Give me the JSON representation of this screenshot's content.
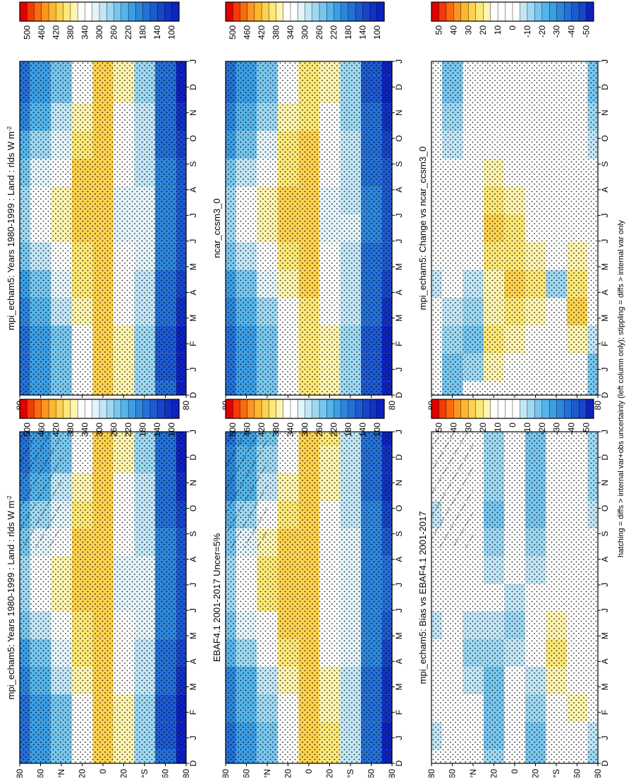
{
  "figure": {
    "footnote": "hatching = diffs > internal var+obs uncertainty (left column only); stippling = diffs > internal var only"
  },
  "colorbars": {
    "absolute": {
      "labels": [
        "500",
        "460",
        "420",
        "380",
        "340",
        "300",
        "260",
        "220",
        "180",
        "140",
        "100"
      ],
      "colors": [
        "#e00000",
        "#f43a08",
        "#fb6a10",
        "#fd9620",
        "#fdb630",
        "#fdd250",
        "#fde878",
        "#fff4b0",
        "#ffffff",
        "#ffffff",
        "#e4f4fb",
        "#c2e6f6",
        "#9ed8f2",
        "#78c6ee",
        "#55b4ea",
        "#3c9ee4",
        "#2d86dc",
        "#2470d6",
        "#1d5ad0",
        "#1746c8",
        "#1232c2",
        "#0d22c0"
      ]
    },
    "difference": {
      "labels": [
        "50",
        "40",
        "30",
        "20",
        "10",
        "0",
        "-10",
        "-20",
        "-30",
        "-40",
        "-50"
      ],
      "colors": [
        "#e00000",
        "#f43a08",
        "#fb6a10",
        "#fd9620",
        "#fdb630",
        "#fdd250",
        "#fde878",
        "#fff4b0",
        "#ffffff",
        "#ffffff",
        "#ffffff",
        "#ffffff",
        "#c2e6f6",
        "#9ed8f2",
        "#78c6ee",
        "#55b4ea",
        "#3c9ee4",
        "#2d86dc",
        "#2470d6",
        "#1d5ad0",
        "#1746c8",
        "#0d22c0"
      ]
    }
  },
  "chart_data": [
    {
      "type": "heatmap",
      "title": "mpi_echam5: Years 1980-1999 : Land : rlds W m",
      "title_sup": "-2",
      "x_ticks": [
        "D",
        "J",
        "F",
        "M",
        "A",
        "M",
        "J",
        "J",
        "A",
        "S",
        "O",
        "N",
        "D",
        "J"
      ],
      "y_ticks": [
        "80",
        "60",
        "°N",
        "20",
        "0",
        "20",
        "°S",
        "60",
        "80"
      ],
      "legend": "absolute",
      "field": "absolute",
      "hatched": true,
      "lat": [
        -90,
        -60,
        -40,
        -20,
        0,
        20,
        40,
        60,
        90
      ],
      "months": [
        "D",
        "J",
        "F",
        "M",
        "A",
        "M",
        "J",
        "J",
        "A",
        "S",
        "O",
        "N",
        "D"
      ],
      "values": [
        [
          95,
          95,
          100,
          115,
          135,
          150,
          160,
          160,
          150,
          130,
          110,
          100,
          95
        ],
        [
          165,
          160,
          160,
          170,
          180,
          185,
          190,
          190,
          185,
          180,
          170,
          165,
          165
        ],
        [
          280,
          280,
          280,
          290,
          300,
          305,
          310,
          305,
          300,
          290,
          285,
          280,
          280
        ],
        [
          380,
          380,
          370,
          360,
          345,
          330,
          320,
          320,
          330,
          345,
          360,
          375,
          380
        ],
        [
          405,
          405,
          405,
          405,
          410,
          410,
          410,
          410,
          410,
          410,
          405,
          405,
          405
        ],
        [
          340,
          345,
          350,
          365,
          385,
          400,
          410,
          410,
          405,
          390,
          370,
          350,
          340
        ],
        [
          250,
          250,
          260,
          285,
          320,
          355,
          380,
          380,
          360,
          320,
          285,
          260,
          250
        ],
        [
          210,
          210,
          215,
          230,
          260,
          300,
          330,
          330,
          305,
          265,
          235,
          215,
          210
        ],
        [
          175,
          175,
          180,
          190,
          215,
          250,
          275,
          275,
          255,
          220,
          195,
          180,
          175
        ]
      ]
    },
    {
      "type": "heatmap",
      "title": "mpi_echam5: Years 1980-1999 : Land : rlds W m",
      "title_sup": "-2",
      "x_ticks": [
        "D",
        "J",
        "F",
        "M",
        "A",
        "M",
        "J",
        "J",
        "A",
        "S",
        "O",
        "N",
        "D",
        "J"
      ],
      "y_ticks": [
        "80",
        "60",
        "°N",
        "20",
        "0",
        "20",
        "°S",
        "60",
        "80"
      ],
      "legend": "absolute",
      "field": "absolute",
      "hatched": false,
      "lat": [
        -90,
        -60,
        -40,
        -20,
        0,
        20,
        40,
        60,
        90
      ],
      "months": [
        "D",
        "J",
        "F",
        "M",
        "A",
        "M",
        "J",
        "J",
        "A",
        "S",
        "O",
        "N",
        "D"
      ],
      "values": [
        [
          95,
          95,
          100,
          115,
          135,
          150,
          160,
          160,
          150,
          130,
          110,
          100,
          95
        ],
        [
          165,
          160,
          160,
          170,
          180,
          185,
          190,
          190,
          185,
          180,
          170,
          165,
          165
        ],
        [
          280,
          280,
          280,
          290,
          300,
          305,
          310,
          305,
          300,
          290,
          285,
          280,
          280
        ],
        [
          380,
          380,
          370,
          360,
          345,
          330,
          320,
          320,
          330,
          345,
          360,
          375,
          380
        ],
        [
          405,
          405,
          405,
          405,
          410,
          410,
          410,
          410,
          410,
          410,
          405,
          405,
          405
        ],
        [
          340,
          345,
          350,
          365,
          385,
          400,
          410,
          410,
          405,
          390,
          370,
          350,
          340
        ],
        [
          250,
          250,
          260,
          285,
          320,
          355,
          380,
          380,
          360,
          320,
          285,
          260,
          250
        ],
        [
          210,
          210,
          215,
          230,
          260,
          300,
          330,
          330,
          305,
          265,
          235,
          215,
          210
        ],
        [
          175,
          175,
          180,
          190,
          215,
          250,
          275,
          275,
          255,
          220,
          195,
          180,
          175
        ]
      ]
    },
    {
      "type": "heatmap",
      "title": "EBAF4.1 2001-2017 Uncer=5%",
      "title_sup": "",
      "x_ticks": [
        "D",
        "J",
        "F",
        "M",
        "A",
        "M",
        "J",
        "J",
        "A",
        "S",
        "O",
        "N",
        "D",
        "J"
      ],
      "y_ticks": [
        "80",
        "60",
        "°N",
        "20",
        "0",
        "20",
        "°S",
        "60",
        "80"
      ],
      "legend": "absolute",
      "field": "absolute",
      "hatched": true,
      "lat": [
        -90,
        -60,
        -40,
        -20,
        0,
        20,
        40,
        60,
        90
      ],
      "months": [
        "D",
        "J",
        "F",
        "M",
        "A",
        "M",
        "J",
        "J",
        "A",
        "S",
        "O",
        "N",
        "D"
      ],
      "values": [
        [
          100,
          100,
          105,
          120,
          140,
          155,
          165,
          165,
          155,
          135,
          115,
          105,
          100
        ],
        [
          170,
          165,
          165,
          175,
          185,
          190,
          195,
          195,
          190,
          185,
          175,
          170,
          170
        ],
        [
          285,
          285,
          285,
          295,
          305,
          310,
          315,
          310,
          305,
          295,
          290,
          285,
          285
        ],
        [
          385,
          385,
          375,
          365,
          350,
          335,
          325,
          325,
          335,
          350,
          365,
          380,
          385
        ],
        [
          410,
          410,
          410,
          410,
          415,
          415,
          415,
          415,
          415,
          415,
          410,
          410,
          410
        ],
        [
          345,
          350,
          355,
          370,
          390,
          405,
          415,
          415,
          410,
          395,
          375,
          355,
          345
        ],
        [
          255,
          255,
          265,
          290,
          325,
          360,
          385,
          385,
          365,
          325,
          290,
          265,
          255
        ],
        [
          215,
          215,
          220,
          235,
          265,
          305,
          335,
          335,
          310,
          270,
          240,
          220,
          215
        ],
        [
          180,
          180,
          185,
          195,
          220,
          255,
          280,
          280,
          260,
          225,
          200,
          185,
          180
        ]
      ]
    },
    {
      "type": "heatmap",
      "title": "ncar_ccsm3_0",
      "title_sup": "",
      "x_ticks": [
        "D",
        "J",
        "F",
        "M",
        "A",
        "M",
        "J",
        "J",
        "A",
        "S",
        "O",
        "N",
        "D",
        "J"
      ],
      "y_ticks": [
        "80",
        "60",
        "°N",
        "20",
        "0",
        "20",
        "°S",
        "60",
        "80"
      ],
      "legend": "absolute",
      "field": "absolute",
      "hatched": false,
      "lat": [
        -90,
        -60,
        -40,
        -20,
        0,
        20,
        40,
        60,
        90
      ],
      "months": [
        "D",
        "J",
        "F",
        "M",
        "A",
        "M",
        "J",
        "J",
        "A",
        "S",
        "O",
        "N",
        "D"
      ],
      "values": [
        [
          90,
          90,
          95,
          110,
          130,
          145,
          155,
          155,
          145,
          125,
          105,
          95,
          90
        ],
        [
          160,
          155,
          155,
          165,
          175,
          180,
          185,
          185,
          180,
          175,
          165,
          160,
          160
        ],
        [
          275,
          275,
          275,
          285,
          295,
          300,
          305,
          300,
          295,
          285,
          280,
          275,
          275
        ],
        [
          375,
          375,
          365,
          355,
          340,
          325,
          315,
          315,
          325,
          340,
          355,
          370,
          375
        ],
        [
          400,
          400,
          400,
          400,
          405,
          405,
          405,
          405,
          405,
          405,
          400,
          400,
          400
        ],
        [
          335,
          340,
          345,
          360,
          380,
          395,
          405,
          405,
          400,
          385,
          365,
          345,
          335
        ],
        [
          245,
          245,
          255,
          280,
          315,
          350,
          375,
          375,
          355,
          315,
          280,
          255,
          245
        ],
        [
          205,
          205,
          210,
          225,
          255,
          295,
          325,
          325,
          300,
          260,
          230,
          210,
          205
        ],
        [
          170,
          170,
          175,
          185,
          210,
          245,
          270,
          270,
          250,
          215,
          190,
          175,
          170
        ]
      ]
    },
    {
      "type": "heatmap",
      "title": "mpi_echam5: Bias vs EBAF4.1 2001-2017",
      "title_sup": "",
      "x_ticks": [
        "D",
        "J",
        "F",
        "M",
        "A",
        "M",
        "J",
        "J",
        "A",
        "S",
        "O",
        "N",
        "D",
        "J"
      ],
      "y_ticks": [
        "80",
        "60",
        "°N",
        "20",
        "0",
        "20",
        "°S",
        "60",
        "80"
      ],
      "legend": "difference",
      "field": "difference",
      "hatched": true,
      "lat": [
        -90,
        -60,
        -40,
        -20,
        0,
        20,
        40,
        60,
        90
      ],
      "months": [
        "D",
        "J",
        "F",
        "M",
        "A",
        "M",
        "J",
        "J",
        "A",
        "S",
        "O",
        "N",
        "D"
      ],
      "values": [
        [
          -10,
          -5,
          0,
          5,
          10,
          15,
          10,
          5,
          0,
          -5,
          -10,
          -10,
          -10
        ],
        [
          10,
          15,
          20,
          15,
          10,
          5,
          0,
          5,
          10,
          15,
          10,
          10,
          10
        ],
        [
          0,
          5,
          10,
          20,
          25,
          20,
          15,
          10,
          5,
          0,
          0,
          0,
          0
        ],
        [
          -20,
          -15,
          -10,
          -5,
          0,
          5,
          0,
          -5,
          -10,
          -15,
          -20,
          -20,
          -20
        ],
        [
          5,
          10,
          5,
          0,
          -5,
          -10,
          -5,
          0,
          5,
          10,
          5,
          5,
          5
        ],
        [
          -10,
          -15,
          -20,
          -15,
          -10,
          -5,
          0,
          -5,
          -10,
          -15,
          -10,
          -10,
          -10
        ],
        [
          10,
          5,
          0,
          -5,
          -10,
          -5,
          0,
          5,
          10,
          5,
          0,
          5,
          10
        ],
        [
          15,
          10,
          5,
          10,
          15,
          10,
          5,
          0,
          5,
          10,
          15,
          15,
          15
        ],
        [
          0,
          -5,
          0,
          5,
          0,
          -5,
          0,
          5,
          0,
          -5,
          0,
          0,
          0
        ]
      ]
    },
    {
      "type": "heatmap",
      "title": "mpi_echam5: Change vs ncar_ccsm3_0",
      "title_sup": "",
      "x_ticks": [
        "D",
        "J",
        "F",
        "M",
        "A",
        "M",
        "J",
        "J",
        "A",
        "S",
        "O",
        "N",
        "D",
        "J"
      ],
      "y_ticks": [
        "80",
        "60",
        "°N",
        "20",
        "0",
        "20",
        "°S",
        "60",
        "80"
      ],
      "legend": "difference",
      "field": "difference",
      "hatched": false,
      "lat": [
        -90,
        -60,
        -40,
        -20,
        0,
        20,
        40,
        60,
        90
      ],
      "months": [
        "D",
        "J",
        "F",
        "M",
        "A",
        "M",
        "J",
        "J",
        "A",
        "S",
        "O",
        "N",
        "D"
      ],
      "values": [
        [
          -20,
          -15,
          -5,
          5,
          10,
          15,
          10,
          5,
          0,
          -5,
          -10,
          -15,
          -20
        ],
        [
          10,
          15,
          20,
          30,
          25,
          20,
          15,
          10,
          10,
          15,
          10,
          10,
          10
        ],
        [
          0,
          5,
          10,
          10,
          -10,
          5,
          10,
          5,
          0,
          0,
          0,
          0,
          0
        ],
        [
          5,
          10,
          15,
          20,
          25,
          20,
          15,
          10,
          10,
          5,
          5,
          5,
          5
        ],
        [
          10,
          15,
          20,
          25,
          30,
          25,
          25,
          20,
          15,
          10,
          10,
          10,
          10
        ],
        [
          15,
          20,
          25,
          20,
          20,
          25,
          30,
          25,
          20,
          15,
          15,
          15,
          15
        ],
        [
          0,
          -10,
          -15,
          -10,
          -5,
          0,
          5,
          10,
          10,
          5,
          0,
          0,
          0
        ],
        [
          -15,
          -15,
          -10,
          -5,
          0,
          5,
          10,
          5,
          0,
          -5,
          -10,
          -15,
          -15
        ],
        [
          5,
          10,
          5,
          0,
          -5,
          0,
          5,
          10,
          5,
          0,
          0,
          5,
          5
        ]
      ]
    }
  ]
}
